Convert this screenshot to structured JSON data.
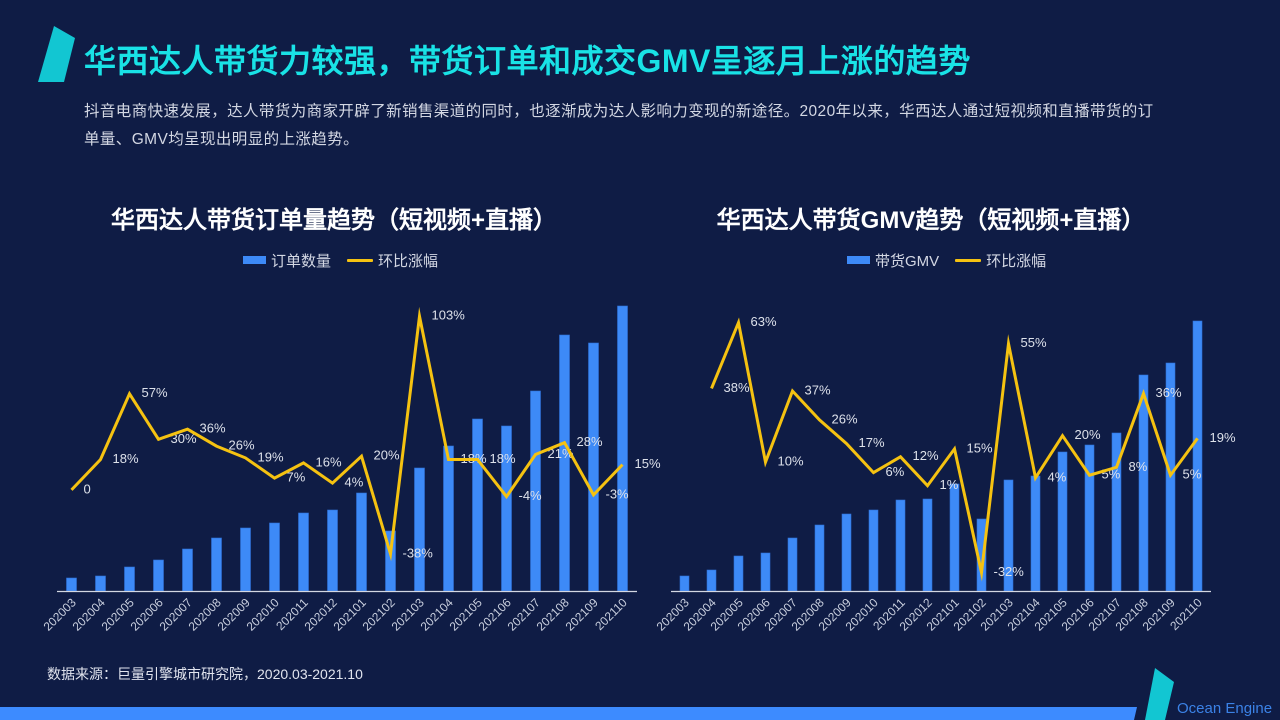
{
  "header": {
    "title": "华西达人带货力较强，带货订单和成交GMV呈逐月上涨的趋势",
    "description": [
      "抖音电商快速发展，达人带货为商家开辟了新销售渠道的同时，也逐渐成为达人影响力变现的新途径。2020年以来，华西达人通过短视频和直播带货的订",
      "单量、GMV均呈现出明显的上涨趋势。"
    ]
  },
  "colors": {
    "background": "#0f1c45",
    "accent": "#19e2e6",
    "accent_shape": "#12c6d2",
    "bar": "#3d8af7",
    "line": "#f5c211",
    "axis": "#d3d7e2",
    "footer_strip": "#3d8bff",
    "brand_text": "#3b82e6"
  },
  "chart_data": [
    {
      "type": "bar+line",
      "title": "华西达人带货订单量趋势（短视频+直播）",
      "categories": [
        "202003",
        "202004",
        "202005",
        "202006",
        "202007",
        "202008",
        "202009",
        "202010",
        "202011",
        "202012",
        "202101",
        "202102",
        "202103",
        "202104",
        "202105",
        "202106",
        "202107",
        "202108",
        "202109",
        "202110"
      ],
      "series": [
        {
          "name": "订单数量",
          "type": "bar",
          "axis": "left",
          "values": [
            13,
            15,
            24,
            31,
            42,
            53,
            63,
            68,
            78,
            81,
            98,
            60,
            123,
            145,
            172,
            165,
            200,
            256,
            248,
            285
          ]
        },
        {
          "name": "环比涨幅",
          "type": "line",
          "axis": "right",
          "values": [
            0,
            18,
            57,
            30,
            36,
            26,
            19,
            7,
            16,
            4,
            20,
            -38,
            103,
            18,
            18,
            -4,
            21,
            28,
            -3,
            15
          ],
          "labels": [
            "0",
            "18%",
            "57%",
            "30%",
            "36%",
            "26%",
            "19%",
            "7%",
            "16%",
            "4%",
            "20%",
            "-38%",
            "103%",
            "18%",
            "18%",
            "-4%",
            "21%",
            "28%",
            "-3%",
            "15%"
          ]
        }
      ],
      "xlabel": "",
      "ylabel": "",
      "ylim": [
        0,
        300
      ],
      "y2lim": [
        -60,
        118
      ],
      "grid": false,
      "legend_position": "top"
    },
    {
      "type": "bar+line",
      "title": "华西达人带货GMV趋势（短视频+直播）",
      "categories": [
        "202003",
        "202004",
        "202005",
        "202006",
        "202007",
        "202008",
        "202009",
        "202010",
        "202011",
        "202012",
        "202101",
        "202102",
        "202103",
        "202104",
        "202105",
        "202106",
        "202107",
        "202108",
        "202109",
        "202110"
      ],
      "series": [
        {
          "name": "带货GMV",
          "type": "bar",
          "axis": "left",
          "values": [
            15,
            21,
            35,
            38,
            53,
            66,
            77,
            81,
            91,
            92,
            107,
            72,
            111,
            115,
            139,
            146,
            158,
            216,
            228,
            270
          ]
        },
        {
          "name": "环比涨幅",
          "type": "line",
          "axis": "right",
          "values": [
            null,
            38,
            63,
            10,
            37,
            26,
            17,
            6,
            12,
            1,
            15,
            -32,
            55,
            4,
            20,
            5,
            8,
            36,
            5,
            19
          ],
          "labels": [
            null,
            "38%",
            "63%",
            "10%",
            "37%",
            "26%",
            "17%",
            "6%",
            "12%",
            "1%",
            "15%",
            "-32%",
            "55%",
            "4%",
            "20%",
            "5%",
            "8%",
            "36%",
            "5%",
            "19%"
          ]
        }
      ],
      "xlabel": "",
      "ylabel": "",
      "ylim": [
        0,
        300
      ],
      "y2lim": [
        -39,
        75
      ],
      "grid": false,
      "legend_position": "top"
    }
  ],
  "footer": {
    "source": "数据来源：巨量引擎城市研究院，2020.03-2021.10",
    "brand": "Ocean Engine"
  }
}
